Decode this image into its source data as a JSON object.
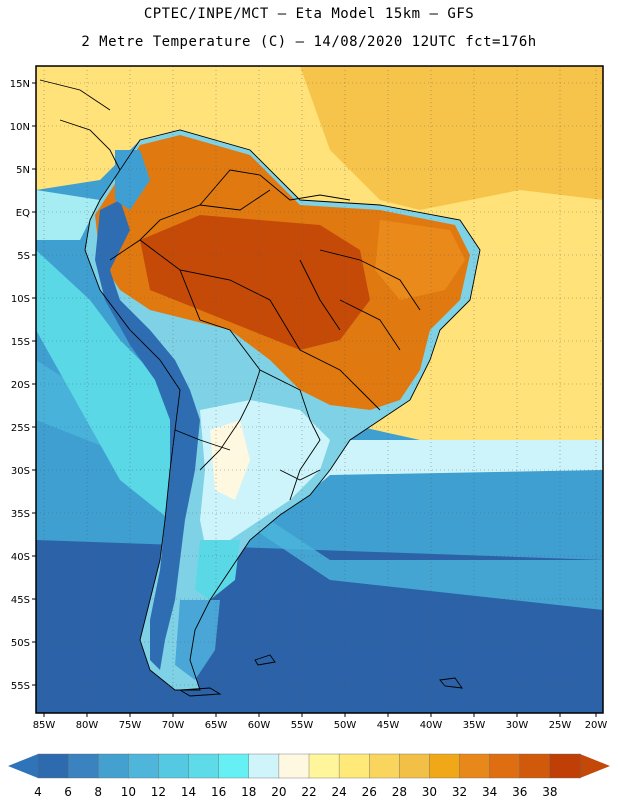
{
  "header": {
    "line1": "CPTEC/INPE/MCT –   Eta Model 15km – GFS",
    "line2": "2 Metre Temperature (C) – 14/08/2020 12UTC fct=176h"
  },
  "map": {
    "lat_labels": [
      "15N",
      "10N",
      "5N",
      "EQ",
      "5S",
      "10S",
      "15S",
      "20S",
      "25S",
      "30S",
      "35S",
      "40S",
      "45S",
      "50S",
      "55S"
    ],
    "lon_labels": [
      "85W",
      "80W",
      "75W",
      "70W",
      "65W",
      "60W",
      "55W",
      "50W",
      "45W",
      "40W",
      "35W",
      "30W",
      "25W",
      "20W"
    ],
    "colors": {
      "ocean_cold": "#2b62a8",
      "ocean_mid": "#3e9fd0",
      "ocean_cyan": "#5ad8e6",
      "ocean_pale": "#ccf4fa",
      "warm_sea": "#ffe27a",
      "sahel": "#f6c44a",
      "hot": "#e07a10",
      "hottest": "#c54a08",
      "andes": "#2f6db3"
    }
  },
  "colorbar": {
    "labels": [
      "4",
      "6",
      "8",
      "10",
      "12",
      "14",
      "16",
      "18",
      "20",
      "22",
      "24",
      "26",
      "28",
      "30",
      "32",
      "34",
      "36",
      "38"
    ],
    "colors": [
      "#2e6aae",
      "#3a82c0",
      "#44a0cf",
      "#4fb5da",
      "#55c8e2",
      "#5ddbe8",
      "#66f0f4",
      "#cff5fa",
      "#fff8e0",
      "#fff59a",
      "#ffe978",
      "#f9d55d",
      "#f2c046",
      "#f0a818",
      "#e8871a",
      "#df6e13",
      "#d0590b",
      "#bf3f07"
    ],
    "left_arrow_color": "#2f74b8",
    "right_arrow_color": "#c44808"
  }
}
